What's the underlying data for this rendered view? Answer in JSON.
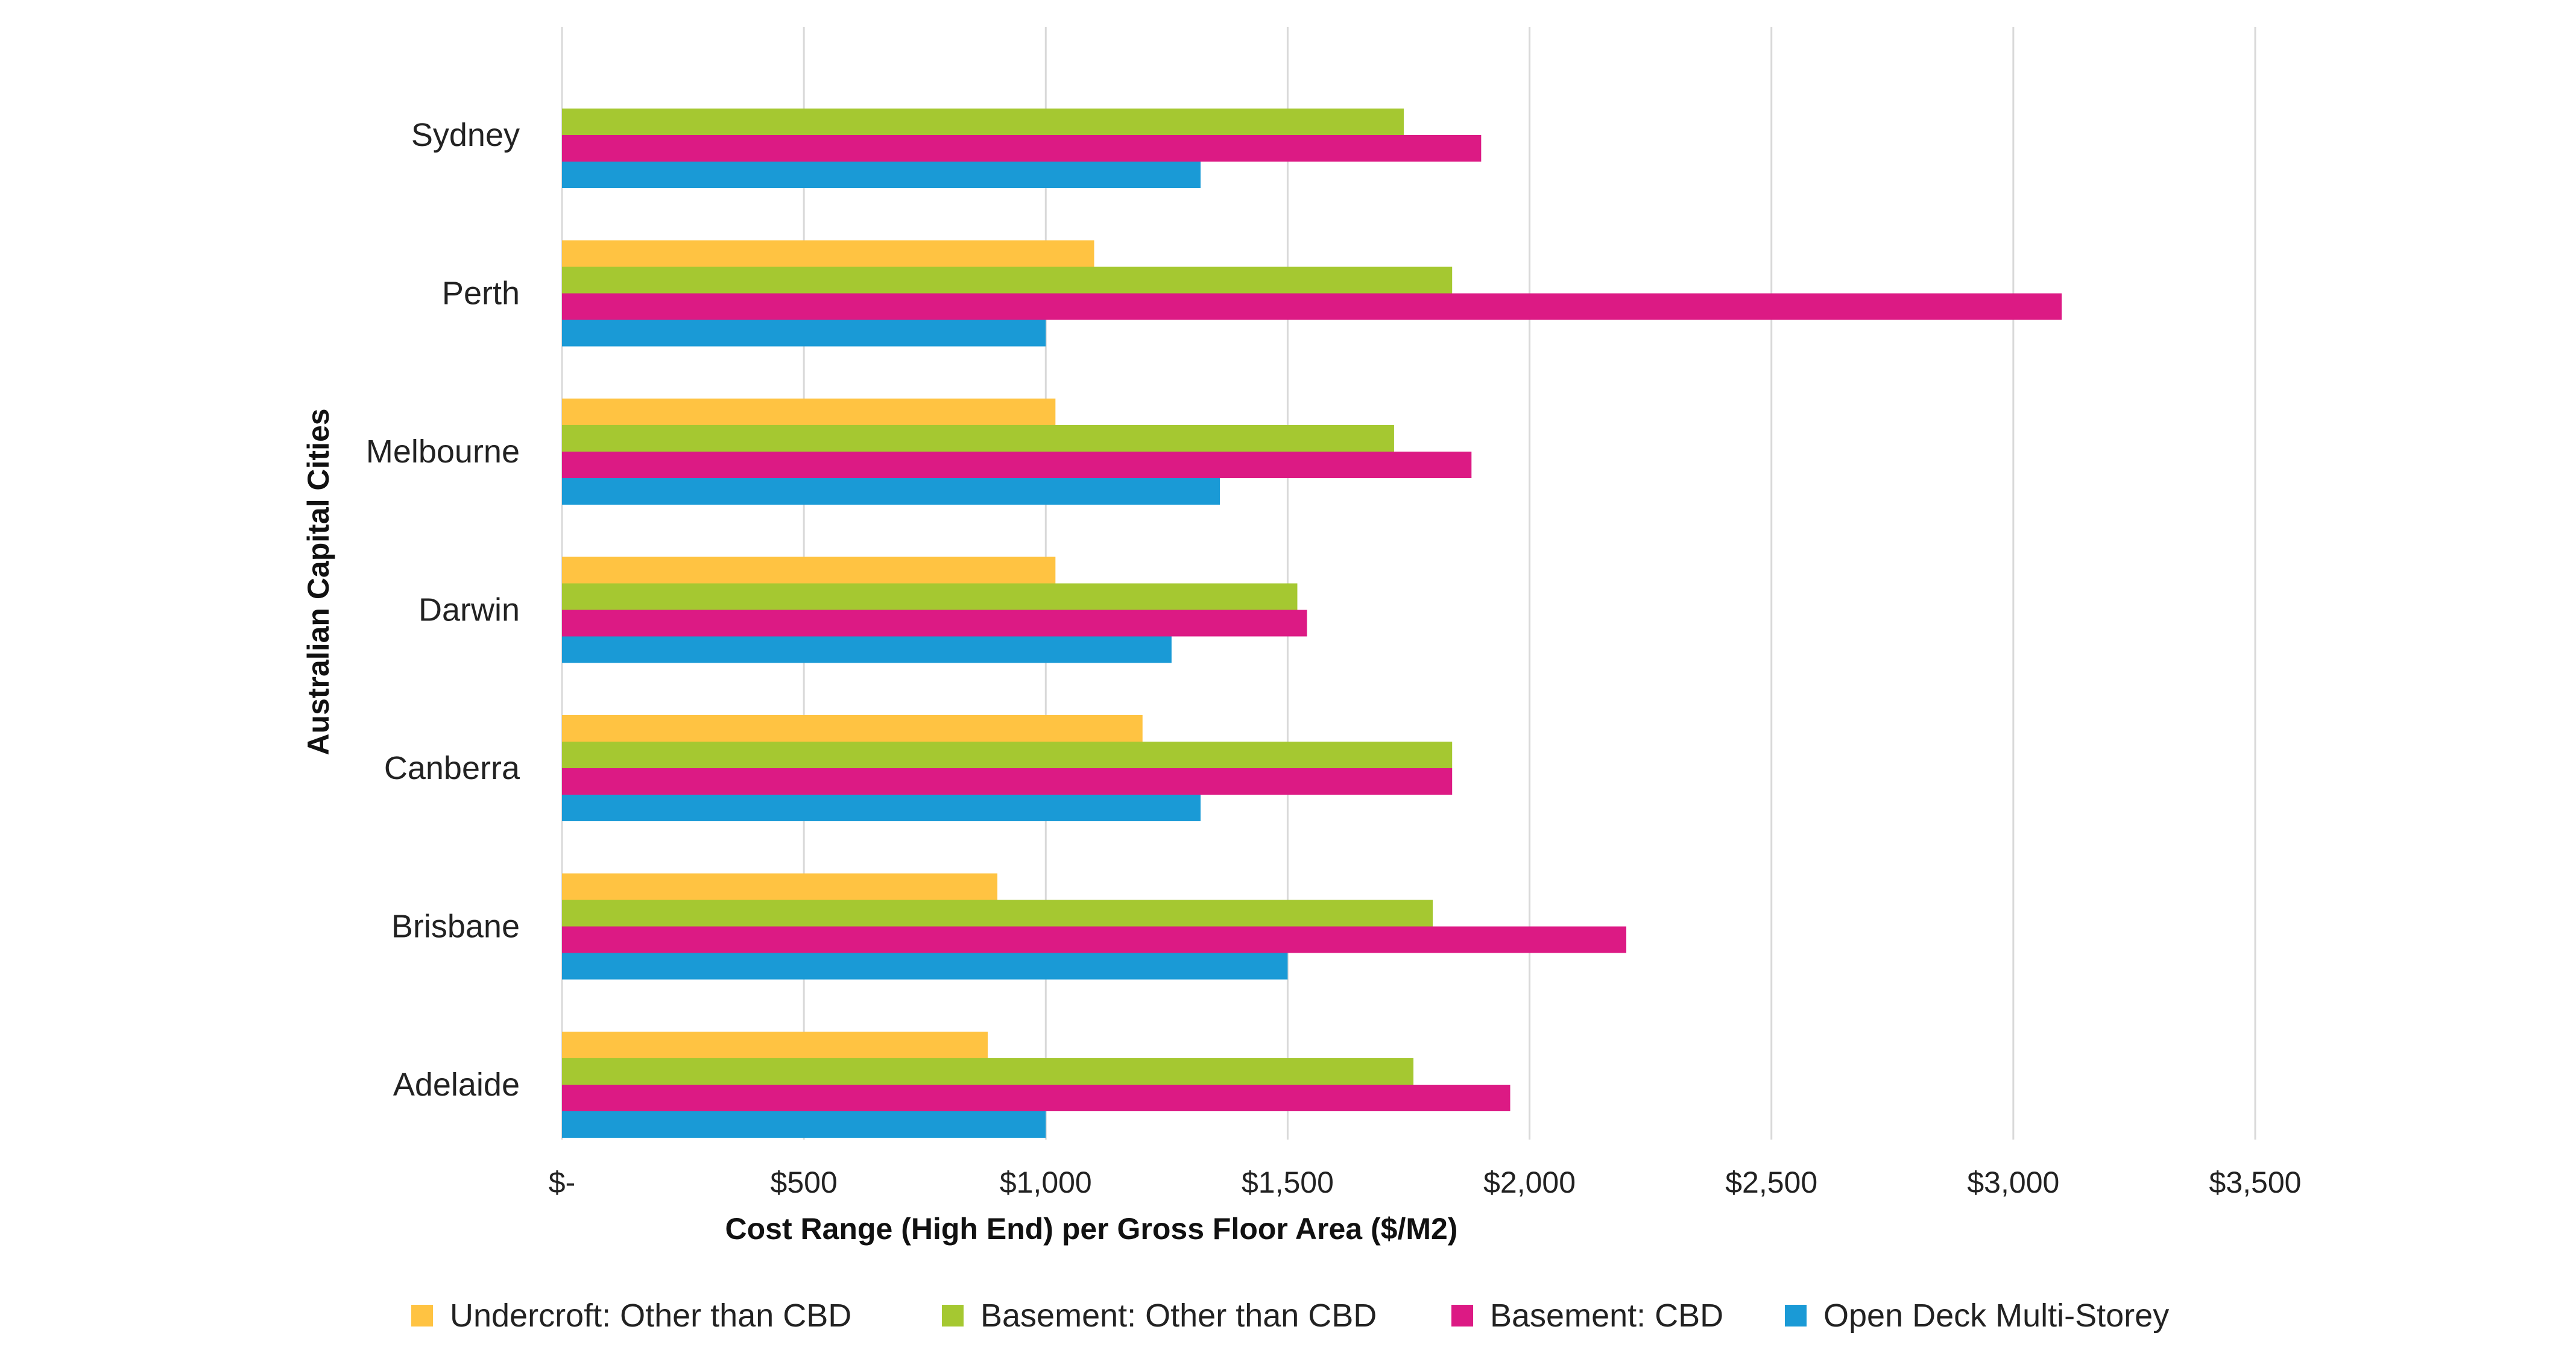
{
  "chart_data": {
    "type": "bar",
    "orientation": "horizontal",
    "xlabel": "Cost Range (High End) per Gross Floor Area ($/M2)",
    "ylabel": "Australian Capital Cities",
    "xlim": [
      0,
      3500
    ],
    "x_ticks": [
      0,
      500,
      1000,
      1500,
      2000,
      2500,
      3000,
      3500
    ],
    "x_tick_labels": [
      "$-",
      "$500",
      "$1,000",
      "$1,500",
      "$2,000",
      "$2,500",
      "$3,000",
      "$3,500"
    ],
    "grid": "vertical",
    "legend_position": "bottom",
    "categories": [
      "Sydney",
      "Perth",
      "Melbourne",
      "Darwin",
      "Canberra",
      "Brisbane",
      "Adelaide"
    ],
    "series": [
      {
        "name": "Undercroft: Other than CBD",
        "color": "#FFC342",
        "values": [
          0,
          1100,
          1020,
          1020,
          1200,
          900,
          880
        ]
      },
      {
        "name": "Basement: Other than CBD",
        "color": "#A5C831",
        "values": [
          1740,
          1840,
          1720,
          1520,
          1840,
          1800,
          1760
        ]
      },
      {
        "name": "Basement: CBD",
        "color": "#DC1A84",
        "values": [
          1900,
          3100,
          1880,
          1540,
          1840,
          2200,
          1960
        ]
      },
      {
        "name": "Open Deck Multi-Storey",
        "color": "#1A9AD6",
        "values": [
          1320,
          1000,
          1360,
          1260,
          1320,
          1500,
          1000
        ]
      }
    ]
  }
}
